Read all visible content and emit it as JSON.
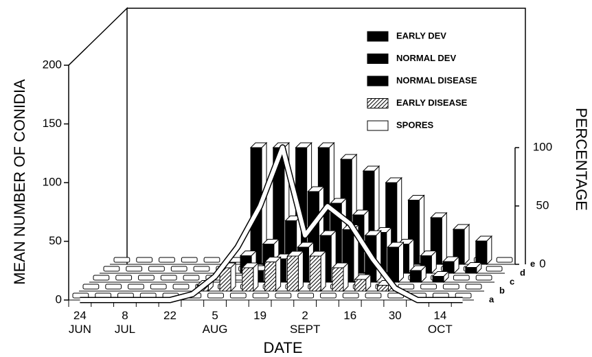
{
  "chart_data": {
    "type": "bar3d",
    "y_label": "MEAN NUMBER OF CONIDIA",
    "y2_label": "PERCENTAGE",
    "x_label": "DATE",
    "categories": [
      "24 JUN",
      null,
      "8 JUL",
      null,
      "22",
      null,
      "5 AUG",
      null,
      "19",
      null,
      "2 SEPT",
      null,
      "16",
      null,
      "30",
      null,
      "14 OCT",
      null
    ],
    "ylim": [
      0,
      200
    ],
    "yticks": [
      0,
      50,
      100,
      150,
      200
    ],
    "y2lim": [
      0,
      100
    ],
    "y2ticks": [
      0,
      50,
      100
    ],
    "series": [
      {
        "name": "EARLY DEV",
        "row": "e",
        "color": "#000000",
        "axis": "y2",
        "values": [
          0,
          0,
          0,
          0,
          0,
          0,
          100,
          100,
          100,
          100,
          90,
          80,
          70,
          55,
          40,
          30,
          20,
          0
        ]
      },
      {
        "name": "NORMAL DEV",
        "row": "d",
        "color": "#000000",
        "axis": "y2",
        "values": [
          0,
          0,
          0,
          0,
          0,
          0,
          15,
          25,
          45,
          70,
          60,
          50,
          35,
          25,
          15,
          10,
          5,
          0
        ]
      },
      {
        "name": "NORMAL DISEASE",
        "row": "c",
        "color": "#000000",
        "axis": "y2",
        "values": [
          0,
          0,
          0,
          0,
          0,
          0,
          0,
          10,
          20,
          30,
          40,
          45,
          40,
          30,
          10,
          5,
          0,
          0
        ]
      },
      {
        "name": "EARLY DISEASE",
        "row": "b",
        "color": "#000000",
        "pattern": "hatch",
        "axis": "y2",
        "values": [
          0,
          0,
          0,
          0,
          0,
          5,
          20,
          20,
          25,
          30,
          30,
          20,
          10,
          5,
          0,
          0,
          0,
          0
        ]
      },
      {
        "name": "SPORES",
        "row": "a",
        "color": "#ffffff",
        "type": "line",
        "values": [
          0,
          0,
          0,
          0,
          0,
          5,
          20,
          45,
          80,
          130,
          55,
          80,
          65,
          35,
          10,
          0,
          0,
          0
        ]
      }
    ]
  }
}
